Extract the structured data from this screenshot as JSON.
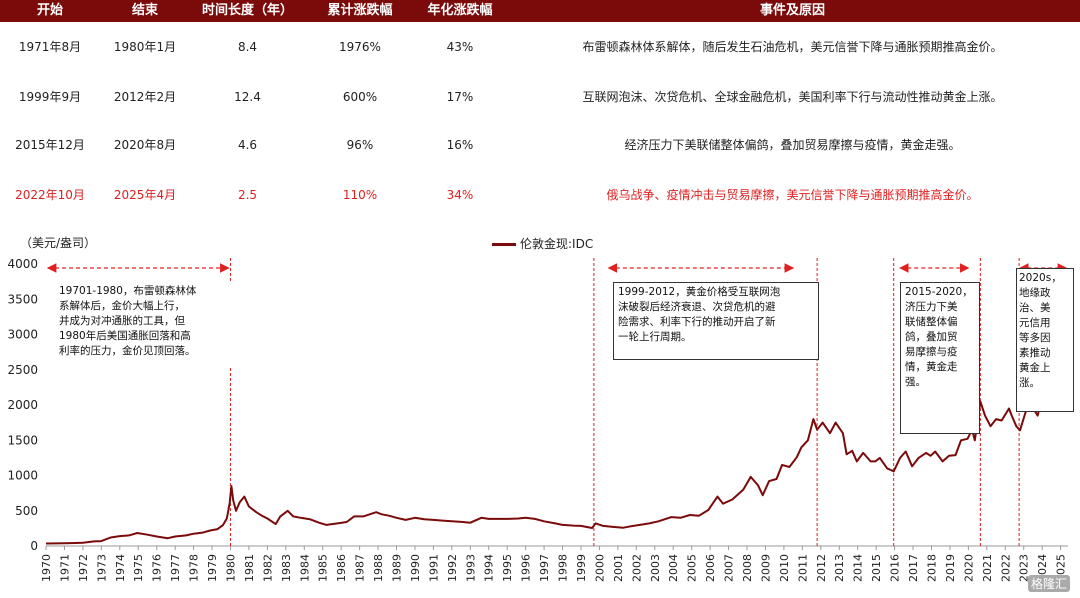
{
  "table": {
    "headers": [
      "开始",
      "结束",
      "时间长度（年）",
      "累计涨跌幅",
      "年化涨跌幅",
      "事件及原因"
    ],
    "rows": [
      {
        "start": "1971年8月",
        "end": "1980年1月",
        "years": "8.4",
        "cum": "1976%",
        "ann": "43%",
        "reason": "布雷顿森林体系解体，随后发生石油危机，美元信誉下降与通胀预期推高金价。",
        "highlight": false
      },
      {
        "start": "1999年9月",
        "end": "2012年2月",
        "years": "12.4",
        "cum": "600%",
        "ann": "17%",
        "reason": "互联网泡沫、次贷危机、全球金融危机，美国利率下行与流动性推动黄金上涨。",
        "highlight": false
      },
      {
        "start": "2015年12月",
        "end": "2020年8月",
        "years": "4.6",
        "cum": "96%",
        "ann": "16%",
        "reason": "经济压力下美联储整体偏鸽，叠加贸易摩擦与疫情，黄金走强。",
        "highlight": false
      },
      {
        "start": "2022年10月",
        "end": "2025年4月",
        "years": "2.5",
        "cum": "110%",
        "ann": "34%",
        "reason": "俄乌战争、疫情冲击与贸易摩擦，美元信誉下降与通胀预期推高金价。",
        "highlight": true
      }
    ]
  },
  "chart_data": {
    "type": "line",
    "ylabel": "（美元/盎司）",
    "legend_position": "top-center",
    "ylim": [
      0,
      4000
    ],
    "yticks": [
      0,
      500,
      1000,
      1500,
      2000,
      2500,
      3000,
      3500,
      4000
    ],
    "xlim": [
      1970,
      2025.4
    ],
    "xticks": [
      "1970",
      "1971",
      "1972",
      "1973",
      "1974",
      "1975",
      "1976",
      "1977",
      "1978",
      "1979",
      "1980",
      "1981",
      "1982",
      "1983",
      "1984",
      "1985",
      "1986",
      "1987",
      "1988",
      "1989",
      "1990",
      "1991",
      "1992",
      "1993",
      "1994",
      "1995",
      "1996",
      "1997",
      "1998",
      "1999",
      "2000",
      "2001",
      "2002",
      "2003",
      "2004",
      "2005",
      "2006",
      "2007",
      "2008",
      "2009",
      "2010",
      "2011",
      "2012",
      "2013",
      "2014",
      "2015",
      "2016",
      "2017",
      "2018",
      "2019",
      "2020",
      "2021",
      "2022",
      "2023",
      "2024",
      "2025"
    ],
    "series": [
      {
        "name": "伦敦金现:IDC",
        "color": "#7b0a0a",
        "points": [
          [
            1970.0,
            35
          ],
          [
            1971.0,
            38
          ],
          [
            1971.6,
            42
          ],
          [
            1972.0,
            46
          ],
          [
            1972.6,
            65
          ],
          [
            1973.0,
            70
          ],
          [
            1973.5,
            120
          ],
          [
            1974.0,
            140
          ],
          [
            1974.5,
            150
          ],
          [
            1974.95,
            185
          ],
          [
            1975.5,
            160
          ],
          [
            1976.0,
            135
          ],
          [
            1976.6,
            110
          ],
          [
            1977.0,
            135
          ],
          [
            1977.6,
            150
          ],
          [
            1978.0,
            175
          ],
          [
            1978.5,
            190
          ],
          [
            1978.9,
            220
          ],
          [
            1979.3,
            240
          ],
          [
            1979.6,
            300
          ],
          [
            1979.8,
            390
          ],
          [
            1979.95,
            600
          ],
          [
            1980.05,
            850
          ],
          [
            1980.15,
            650
          ],
          [
            1980.3,
            500
          ],
          [
            1980.5,
            620
          ],
          [
            1980.75,
            700
          ],
          [
            1981.0,
            560
          ],
          [
            1981.4,
            480
          ],
          [
            1981.7,
            430
          ],
          [
            1982.0,
            390
          ],
          [
            1982.45,
            310
          ],
          [
            1982.7,
            420
          ],
          [
            1983.1,
            500
          ],
          [
            1983.4,
            420
          ],
          [
            1983.8,
            400
          ],
          [
            1984.3,
            380
          ],
          [
            1984.8,
            330
          ],
          [
            1985.2,
            300
          ],
          [
            1985.8,
            320
          ],
          [
            1986.3,
            340
          ],
          [
            1986.7,
            420
          ],
          [
            1987.2,
            420
          ],
          [
            1987.9,
            480
          ],
          [
            1988.2,
            450
          ],
          [
            1988.6,
            430
          ],
          [
            1989.0,
            400
          ],
          [
            1989.5,
            370
          ],
          [
            1990.0,
            400
          ],
          [
            1990.5,
            380
          ],
          [
            1991.0,
            370
          ],
          [
            1991.5,
            360
          ],
          [
            1992.0,
            350
          ],
          [
            1992.6,
            340
          ],
          [
            1993.0,
            330
          ],
          [
            1993.6,
            400
          ],
          [
            1994.0,
            385
          ],
          [
            1994.6,
            385
          ],
          [
            1995.0,
            385
          ],
          [
            1995.6,
            390
          ],
          [
            1996.0,
            400
          ],
          [
            1996.5,
            385
          ],
          [
            1997.0,
            350
          ],
          [
            1997.6,
            320
          ],
          [
            1998.0,
            300
          ],
          [
            1998.6,
            290
          ],
          [
            1999.0,
            285
          ],
          [
            1999.6,
            255
          ],
          [
            1999.8,
            320
          ],
          [
            2000.2,
            285
          ],
          [
            2000.8,
            270
          ],
          [
            2001.3,
            260
          ],
          [
            2001.7,
            280
          ],
          [
            2002.2,
            300
          ],
          [
            2002.7,
            320
          ],
          [
            2003.2,
            350
          ],
          [
            2003.9,
            410
          ],
          [
            2004.4,
            400
          ],
          [
            2004.9,
            440
          ],
          [
            2005.4,
            430
          ],
          [
            2005.9,
            510
          ],
          [
            2006.4,
            700
          ],
          [
            2006.7,
            600
          ],
          [
            2007.2,
            660
          ],
          [
            2007.8,
            800
          ],
          [
            2008.2,
            980
          ],
          [
            2008.6,
            860
          ],
          [
            2008.85,
            720
          ],
          [
            2009.2,
            920
          ],
          [
            2009.6,
            950
          ],
          [
            2009.9,
            1150
          ],
          [
            2010.3,
            1120
          ],
          [
            2010.7,
            1260
          ],
          [
            2010.95,
            1400
          ],
          [
            2011.3,
            1500
          ],
          [
            2011.6,
            1800
          ],
          [
            2011.8,
            1650
          ],
          [
            2012.1,
            1750
          ],
          [
            2012.5,
            1600
          ],
          [
            2012.8,
            1750
          ],
          [
            2013.2,
            1600
          ],
          [
            2013.4,
            1300
          ],
          [
            2013.7,
            1350
          ],
          [
            2013.95,
            1200
          ],
          [
            2014.3,
            1320
          ],
          [
            2014.7,
            1200
          ],
          [
            2014.95,
            1200
          ],
          [
            2015.2,
            1250
          ],
          [
            2015.6,
            1100
          ],
          [
            2015.95,
            1060
          ],
          [
            2016.3,
            1250
          ],
          [
            2016.6,
            1340
          ],
          [
            2016.95,
            1130
          ],
          [
            2017.3,
            1250
          ],
          [
            2017.7,
            1320
          ],
          [
            2017.95,
            1280
          ],
          [
            2018.2,
            1340
          ],
          [
            2018.6,
            1200
          ],
          [
            2018.95,
            1280
          ],
          [
            2019.3,
            1290
          ],
          [
            2019.6,
            1500
          ],
          [
            2019.95,
            1520
          ],
          [
            2020.2,
            1650
          ],
          [
            2020.35,
            1500
          ],
          [
            2020.6,
            1950
          ],
          [
            2020.65,
            2050
          ],
          [
            2020.9,
            1850
          ],
          [
            2021.2,
            1700
          ],
          [
            2021.5,
            1800
          ],
          [
            2021.8,
            1780
          ],
          [
            2022.2,
            1950
          ],
          [
            2022.35,
            1850
          ],
          [
            2022.6,
            1700
          ],
          [
            2022.8,
            1640
          ],
          [
            2023.1,
            1900
          ],
          [
            2023.4,
            2000
          ],
          [
            2023.75,
            1850
          ],
          [
            2023.95,
            2050
          ],
          [
            2024.3,
            2350
          ],
          [
            2024.6,
            2450
          ],
          [
            2024.8,
            2700
          ],
          [
            2024.95,
            2620
          ],
          [
            2025.1,
            2900
          ],
          [
            2025.25,
            3100
          ],
          [
            2025.35,
            3400
          ]
        ]
      }
    ],
    "highlight_periods": [
      {
        "from": 1970.0,
        "to": 1980.0
      },
      {
        "from": 2000.4,
        "to": 2010.6
      },
      {
        "from": 2016.2,
        "to": 2020.1
      },
      {
        "from": 2022.7,
        "to": 2025.4
      }
    ],
    "vlines": [
      1980.0,
      1999.7,
      2011.8,
      2015.95,
      2020.65,
      2022.75
    ],
    "annotations": [
      "19701-1980，布雷顿森林体\n系解体后，金价大幅上行，\n并成为对冲通胀的工具，但\n1980年后美国通胀回落和高\n利率的压力，金价见顶回落。",
      "1999-2012，黄金价格受互联网泡\n沫破裂后经济衰退、次贷危机的避\n险需求、利率下行的推动开启了新\n一轮上行周期。",
      "2015-2020，\n济压力下美\n联储整体偏\n鸽，叠加贸\n易摩擦与疫\n情，黄金走\n强。",
      "2020s，\n地缘政\n治、美\n元信用\n等多因\n素推动\n黄金上\n涨。"
    ]
  },
  "watermark": "格隆汇"
}
